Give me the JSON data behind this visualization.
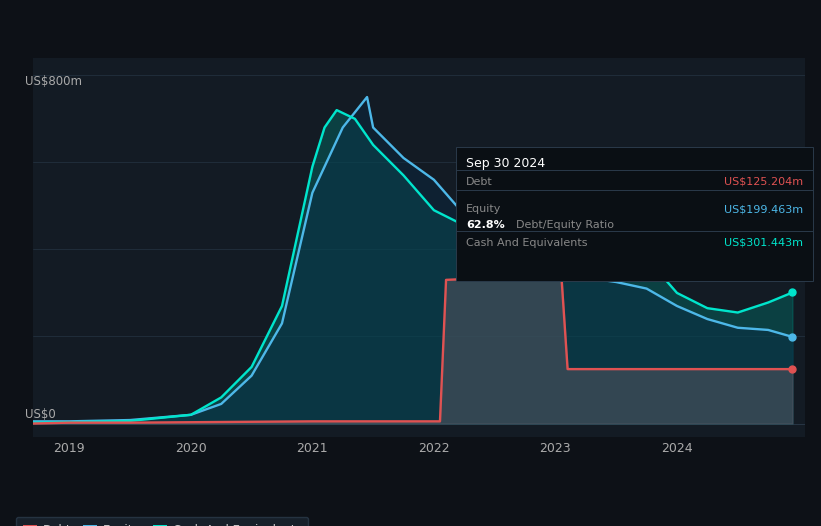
{
  "bg_color": "#0d1117",
  "plot_bg_color": "#131b24",
  "title_y_label": "US$800m",
  "zero_y_label": "US$0",
  "x_ticks": [
    2019,
    2020,
    2021,
    2022,
    2023,
    2024
  ],
  "y_max": 800,
  "y_min": -30,
  "debt_color": "#e05252",
  "equity_color": "#4db8e8",
  "cash_color": "#00e5cc",
  "info_box": {
    "date": "Sep 30 2024",
    "debt_label": "Debt",
    "debt_value": "US$125.204m",
    "equity_label": "Equity",
    "equity_value": "US$199.463m",
    "ratio_value": "62.8%",
    "ratio_label": "Debt/Equity Ratio",
    "cash_label": "Cash And Equivalents",
    "cash_value": "US$301.443m",
    "bg": "#0a0f14",
    "border": "#2a3a4a"
  },
  "debt_x": [
    2018.7,
    2019.0,
    2019.5,
    2020.0,
    2020.5,
    2021.0,
    2021.4,
    2021.45,
    2021.5,
    2021.75,
    2022.0,
    2022.05,
    2022.1,
    2022.5,
    2022.75,
    2023.0,
    2023.05,
    2023.1,
    2023.5,
    2023.75,
    2024.0,
    2024.25,
    2024.5,
    2024.75,
    2024.95
  ],
  "debt_y": [
    0,
    2,
    2,
    3,
    4,
    5,
    5,
    5,
    5,
    5,
    5,
    5,
    330,
    335,
    335,
    335,
    335,
    125,
    125,
    125,
    125,
    125,
    125,
    125,
    125
  ],
  "equity_x": [
    2018.7,
    2019.0,
    2019.5,
    2020.0,
    2020.25,
    2020.5,
    2020.75,
    2021.0,
    2021.25,
    2021.45,
    2021.5,
    2021.75,
    2022.0,
    2022.25,
    2022.5,
    2022.75,
    2023.0,
    2023.25,
    2023.5,
    2023.75,
    2024.0,
    2024.25,
    2024.5,
    2024.75,
    2024.95
  ],
  "equity_y": [
    5,
    5,
    8,
    20,
    45,
    110,
    230,
    530,
    680,
    750,
    680,
    610,
    560,
    480,
    430,
    390,
    350,
    335,
    325,
    310,
    270,
    240,
    220,
    215,
    199
  ],
  "cash_x": [
    2018.7,
    2019.0,
    2019.5,
    2020.0,
    2020.25,
    2020.5,
    2020.75,
    2021.0,
    2021.1,
    2021.2,
    2021.35,
    2021.5,
    2021.75,
    2022.0,
    2022.25,
    2022.5,
    2022.75,
    2023.0,
    2023.1,
    2023.2,
    2023.5,
    2023.75,
    2024.0,
    2024.25,
    2024.5,
    2024.75,
    2024.95
  ],
  "cash_y": [
    2,
    3,
    6,
    20,
    60,
    130,
    270,
    590,
    680,
    720,
    700,
    640,
    570,
    490,
    455,
    440,
    430,
    410,
    480,
    510,
    440,
    380,
    300,
    265,
    255,
    278,
    301
  ]
}
